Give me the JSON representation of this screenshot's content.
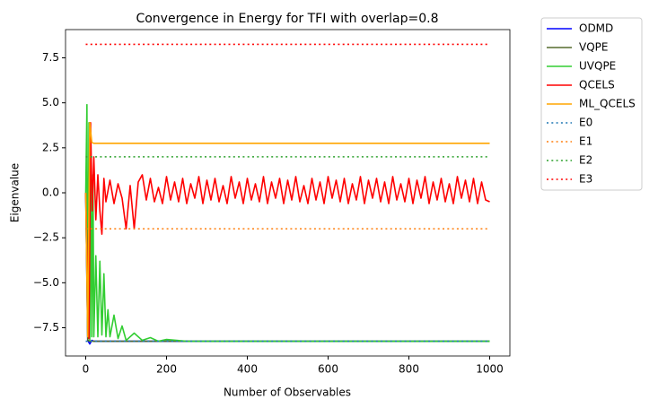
{
  "chart_data": {
    "type": "line",
    "title": "Convergence in Energy for TFI with overlap=0.8",
    "xlabel": "Number of Observables",
    "ylabel": "Eigenvalue",
    "xlim": [
      -50,
      1050
    ],
    "ylim": [
      -9.07,
      9.07
    ],
    "xticks": [
      0,
      200,
      400,
      600,
      800,
      1000
    ],
    "yticks": [
      {
        "value": -7.5,
        "label": "−7.5"
      },
      {
        "value": -5,
        "label": "−5.0"
      },
      {
        "value": -2.5,
        "label": "−2.5"
      },
      {
        "value": 0,
        "label": "0.0"
      },
      2.5,
      {
        "value": 5,
        "label": "5.0"
      },
      {
        "value": 7.5,
        "label": "7.5"
      }
    ],
    "grid": false,
    "legend": "outside-upper-right",
    "series": [
      {
        "name": "ODMD",
        "color": "#0000ff",
        "linestyle": "solid",
        "x": [
          0,
          5,
          10,
          15,
          20,
          1000
        ],
        "values": [
          0,
          -8.2,
          -8.4,
          -8.2,
          -8.25,
          -8.25
        ]
      },
      {
        "name": "VQPE",
        "color": "#556b2f",
        "linestyle": "solid",
        "x": [
          0,
          5,
          10,
          1000
        ],
        "values": [
          0,
          -8.2,
          -8.25,
          -8.25
        ]
      },
      {
        "name": "UVQPE",
        "color": "#32cd32",
        "linestyle": "solid",
        "x": [
          0,
          3,
          5,
          8,
          10,
          13,
          15,
          18,
          20,
          25,
          30,
          35,
          40,
          45,
          50,
          55,
          60,
          70,
          80,
          90,
          100,
          120,
          140,
          160,
          180,
          200,
          250,
          1000
        ],
        "values": [
          0,
          4.9,
          -8,
          3.9,
          -8.2,
          2,
          -8,
          1,
          -8,
          -3.5,
          -8,
          -3.8,
          -7.9,
          -4.5,
          -8,
          -6.5,
          -8,
          -6.8,
          -8.1,
          -7.4,
          -8.2,
          -7.8,
          -8.2,
          -8.05,
          -8.25,
          -8.15,
          -8.25,
          -8.25
        ]
      },
      {
        "name": "QCELS",
        "color": "#ff0000",
        "linestyle": "solid",
        "x": [
          0,
          8,
          12,
          16,
          20,
          25,
          30,
          35,
          40,
          45,
          50,
          60,
          70,
          80,
          90,
          100,
          110,
          120,
          130,
          140,
          150,
          160,
          170,
          180,
          190,
          200,
          210,
          220,
          230,
          240,
          250,
          260,
          270,
          280,
          290,
          300,
          310,
          320,
          330,
          340,
          350,
          360,
          370,
          380,
          390,
          400,
          410,
          420,
          430,
          440,
          450,
          460,
          470,
          480,
          490,
          500,
          510,
          520,
          530,
          540,
          550,
          560,
          570,
          580,
          590,
          600,
          610,
          620,
          630,
          640,
          650,
          660,
          670,
          680,
          690,
          700,
          710,
          720,
          730,
          740,
          750,
          760,
          770,
          780,
          790,
          800,
          810,
          820,
          830,
          840,
          850,
          860,
          870,
          880,
          890,
          900,
          910,
          920,
          930,
          940,
          950,
          960,
          970,
          980,
          990,
          1000
        ],
        "values": [
          0,
          -8.1,
          3.9,
          -1,
          2,
          -1.5,
          1,
          -1,
          -2.3,
          0.8,
          -0.5,
          0.7,
          -0.6,
          0.5,
          -0.3,
          -2.0,
          0.4,
          -2.0,
          0.6,
          1.0,
          -0.4,
          0.8,
          -0.5,
          0.3,
          -0.6,
          0.9,
          -0.4,
          0.6,
          -0.5,
          0.8,
          -0.6,
          0.5,
          -0.3,
          0.9,
          -0.6,
          0.7,
          -0.4,
          0.8,
          -0.5,
          0.4,
          -0.6,
          0.9,
          -0.3,
          0.6,
          -0.6,
          0.8,
          -0.4,
          0.5,
          -0.5,
          0.9,
          -0.6,
          0.6,
          -0.3,
          0.8,
          -0.6,
          0.7,
          -0.4,
          0.9,
          -0.5,
          0.4,
          -0.6,
          0.8,
          -0.4,
          0.6,
          -0.6,
          0.9,
          -0.3,
          0.7,
          -0.5,
          0.8,
          -0.6,
          0.5,
          -0.4,
          0.9,
          -0.6,
          0.7,
          -0.3,
          0.8,
          -0.5,
          0.6,
          -0.6,
          0.9,
          -0.4,
          0.5,
          -0.5,
          0.8,
          -0.6,
          0.7,
          -0.3,
          0.9,
          -0.6,
          0.6,
          -0.4,
          0.8,
          -0.5,
          0.5,
          -0.6,
          0.9,
          -0.3,
          0.7,
          -0.5,
          0.8,
          -0.6,
          0.6,
          -0.4,
          -0.5
        ]
      },
      {
        "name": "ML_QCELS",
        "color": "#ffa500",
        "linestyle": "solid",
        "x": [
          0,
          5,
          10,
          15,
          20,
          1000
        ],
        "values": [
          0,
          -8,
          3.9,
          2.8,
          2.75,
          2.75
        ]
      },
      {
        "name": "E0",
        "color": "#1f77b4",
        "linestyle": "dotted",
        "x": [
          0,
          1000
        ],
        "values": [
          -8.25,
          -8.25
        ]
      },
      {
        "name": "E1",
        "color": "#ff7f0e",
        "linestyle": "dotted",
        "x": [
          0,
          1000
        ],
        "values": [
          -2,
          -2
        ]
      },
      {
        "name": "E2",
        "color": "#2ca02c",
        "linestyle": "dotted",
        "x": [
          0,
          1000
        ],
        "values": [
          2,
          2
        ]
      },
      {
        "name": "E3",
        "color": "#ff0000",
        "linestyle": "dotted",
        "x": [
          0,
          1000
        ],
        "values": [
          8.25,
          8.25
        ]
      }
    ]
  }
}
